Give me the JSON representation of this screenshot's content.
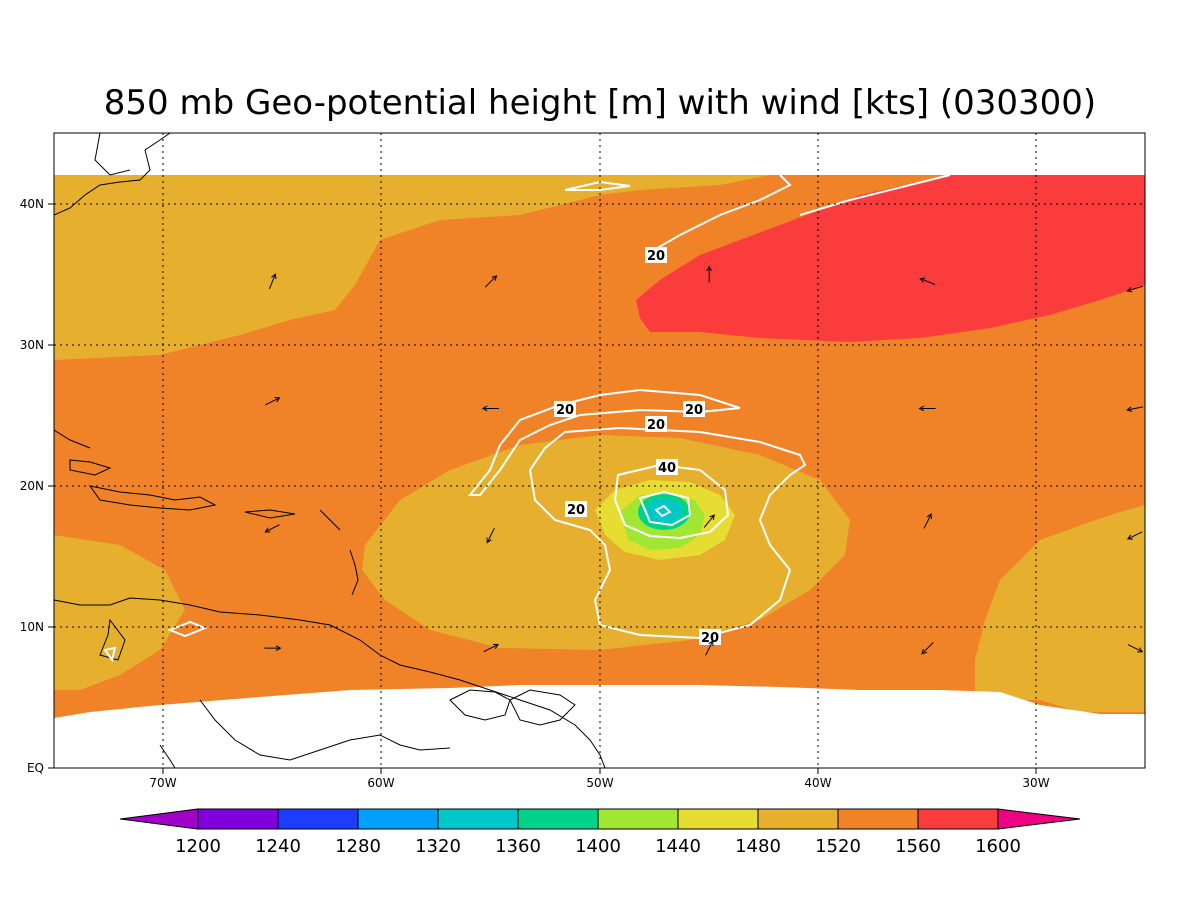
{
  "title": "850 mb Geo-potential height [m] with wind [kts] (030300)",
  "axes": {
    "lon_labels": [
      "70W",
      "60W",
      "50W",
      "40W",
      "30W"
    ],
    "lat_labels": [
      "EQ",
      "10N",
      "20N",
      "30N",
      "40N"
    ]
  },
  "colorbar": {
    "colors": [
      "#a000c8",
      "#8200dc",
      "#1e3cff",
      "#00a0ff",
      "#00c8c8",
      "#00d28c",
      "#a0e632",
      "#e6dc32",
      "#e6af2d",
      "#f08228",
      "#fa3c3c",
      "#f00082"
    ],
    "labels": [
      "1200",
      "1240",
      "1280",
      "1320",
      "1360",
      "1400",
      "1440",
      "1480",
      "1520",
      "1560",
      "1600"
    ]
  },
  "contour_labels": [
    "20",
    "20",
    "20",
    "20",
    "40",
    "20",
    "20"
  ],
  "wind_barbs": [
    {
      "lon": -65,
      "lat": 34.5,
      "u": 0.4,
      "v": 1
    },
    {
      "lon": -55,
      "lat": 34.5,
      "u": 1,
      "v": 1
    },
    {
      "lon": -45,
      "lat": 35,
      "u": 0,
      "v": 1
    },
    {
      "lon": -35,
      "lat": 34.5,
      "u": -1,
      "v": 0.4
    },
    {
      "lon": -25.5,
      "lat": 34,
      "u": -1,
      "v": -0.3
    },
    {
      "lon": -65,
      "lat": 26,
      "u": 1,
      "v": 0.5
    },
    {
      "lon": -55,
      "lat": 25.5,
      "u": -1,
      "v": 0
    },
    {
      "lon": -35,
      "lat": 25.5,
      "u": -1,
      "v": 0
    },
    {
      "lon": -25.5,
      "lat": 25.5,
      "u": -1,
      "v": -0.2
    },
    {
      "lon": -65,
      "lat": 17,
      "u": -1,
      "v": -0.5
    },
    {
      "lon": -55,
      "lat": 16.5,
      "u": -0.5,
      "v": -1
    },
    {
      "lon": -45,
      "lat": 17.5,
      "u": 0.8,
      "v": 1
    },
    {
      "lon": -35,
      "lat": 17.5,
      "u": 0.5,
      "v": 1
    },
    {
      "lon": -25.5,
      "lat": 16.5,
      "u": -1,
      "v": -0.5
    },
    {
      "lon": -65,
      "lat": 8.5,
      "u": 1,
      "v": 0
    },
    {
      "lon": -55,
      "lat": 8.5,
      "u": 1,
      "v": 0.5
    },
    {
      "lon": -45,
      "lat": 8.5,
      "u": 0.5,
      "v": 1
    },
    {
      "lon": -35,
      "lat": 8.5,
      "u": -1,
      "v": -1
    },
    {
      "lon": -25.5,
      "lat": 8.5,
      "u": 1,
      "v": -0.5
    }
  ]
}
